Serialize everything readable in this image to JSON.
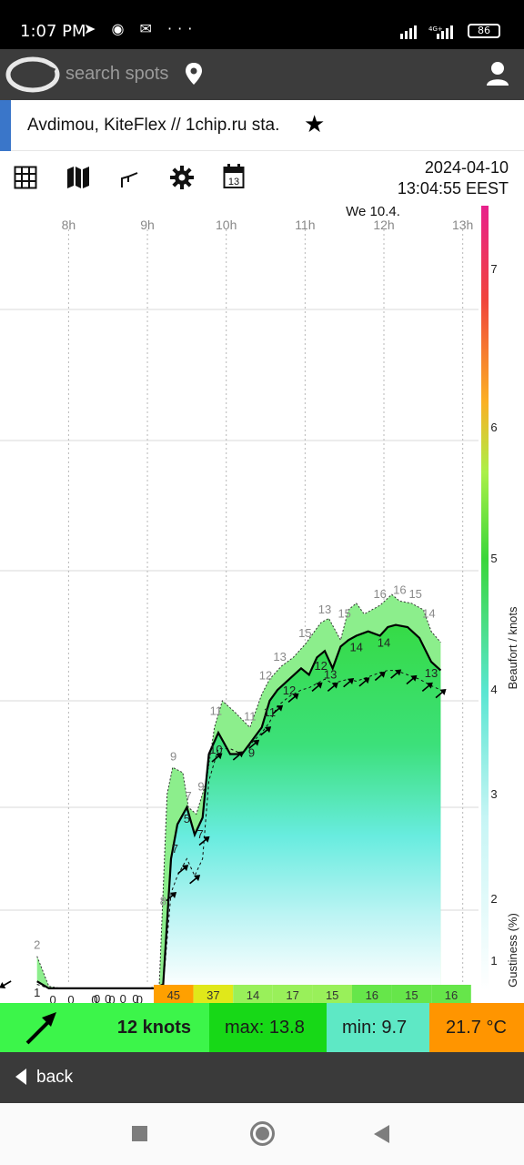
{
  "status": {
    "time": "1:07 PM",
    "notification_icons": "➤ ◉ ✉ ···",
    "network": "4G+",
    "battery": "86"
  },
  "header": {
    "search_placeholder": "search spots"
  },
  "spot": {
    "name": "Avdimou, KiteFlex // 1chip.ru sta.",
    "star": "★"
  },
  "toolbar": {
    "icons": [
      "table-icon",
      "map-icon",
      "graph-icon",
      "settings-icon",
      "calendar-icon"
    ],
    "calendar_day": "13",
    "date": "2024-04-10",
    "time": "13:04:55 EEST"
  },
  "chart_data": {
    "type": "area",
    "day_label": "We 10.4.",
    "hour_ticks": [
      "8h",
      "9h",
      "10h",
      "11h",
      "12h",
      "13h"
    ],
    "ylabel": "Beaufort / knots",
    "y2label": "Gustiness (%)",
    "beaufort_ticks": [
      "1",
      "2",
      "3",
      "4",
      "5",
      "6",
      "7"
    ],
    "series": [
      {
        "name": "gust",
        "x": [
          7.6,
          7.75,
          7.9,
          8.5,
          9.0,
          9.15,
          9.25,
          9.32,
          9.45,
          9.52,
          9.62,
          9.75,
          9.85,
          9.95,
          10.1,
          10.3,
          10.45,
          10.55,
          10.7,
          10.85,
          11.0,
          11.1,
          11.2,
          11.3,
          11.45,
          11.55,
          11.65,
          11.75,
          11.95,
          12.1,
          12.2,
          12.35,
          12.5,
          12.6,
          12.72
        ],
        "values": [
          2,
          0.3,
          0.1,
          0.1,
          0.1,
          0.3,
          7.5,
          8.5,
          8.3,
          7.0,
          6.8,
          8.0,
          10.0,
          11.0,
          10.6,
          10.0,
          11.3,
          12.0,
          12.6,
          13.0,
          13.6,
          14.1,
          14.6,
          14.8,
          13.8,
          15.2,
          15.5,
          15.0,
          15.4,
          15.9,
          15.6,
          15.5,
          15.2,
          14.2,
          13.7
        ]
      },
      {
        "name": "average",
        "x": [
          7.6,
          7.75,
          7.9,
          8.5,
          9.0,
          9.1,
          9.2,
          9.3,
          9.38,
          9.5,
          9.6,
          9.7,
          9.78,
          9.9,
          10.05,
          10.2,
          10.35,
          10.45,
          10.55,
          10.65,
          10.8,
          10.95,
          11.05,
          11.15,
          11.25,
          11.35,
          11.45,
          11.55,
          11.65,
          11.8,
          11.95,
          12.05,
          12.15,
          12.3,
          12.45,
          12.6,
          12.72
        ],
        "values": [
          0.8,
          0.1,
          0.1,
          0.1,
          0.1,
          0.1,
          0.5,
          5.5,
          6.5,
          7.0,
          6.2,
          6.7,
          9.0,
          9.8,
          9.0,
          9.0,
          9.6,
          10.0,
          11.0,
          11.5,
          12.0,
          12.5,
          12.2,
          13.0,
          13.3,
          12.5,
          13.5,
          13.8,
          14.0,
          14.2,
          14.0,
          14.4,
          14.5,
          14.4,
          13.9,
          12.8,
          12.4
        ]
      },
      {
        "name": "minimum",
        "x": [
          7.6,
          7.75,
          7.9,
          8.5,
          9.0,
          9.1,
          9.2,
          9.3,
          9.38,
          9.5,
          9.6,
          9.7,
          9.78,
          9.9,
          10.05,
          10.2,
          10.35,
          10.45,
          10.55,
          10.65,
          10.8,
          10.95,
          11.05,
          11.15,
          11.25,
          11.35,
          11.45,
          11.55,
          11.65,
          11.8,
          11.95,
          12.05,
          12.15,
          12.3,
          12.45,
          12.6,
          12.72
        ],
        "values": [
          0.5,
          0.1,
          0.1,
          0.1,
          0.1,
          0.1,
          0.3,
          4.5,
          5.0,
          5.5,
          5.0,
          5.5,
          8.0,
          9.2,
          9.2,
          9.0,
          9.5,
          9.8,
          10.2,
          10.8,
          11.2,
          11.5,
          11.6,
          11.8,
          12.0,
          11.8,
          11.9,
          12.0,
          11.9,
          12.1,
          12.3,
          12.4,
          12.4,
          12.2,
          12.0,
          11.7,
          11.5
        ]
      }
    ],
    "gust_labels": [
      {
        "x": 7.6,
        "text": "2"
      },
      {
        "x": 9.2,
        "text": "8"
      },
      {
        "x": 9.33,
        "text": "9"
      },
      {
        "x": 9.52,
        "text": "7"
      },
      {
        "x": 9.68,
        "text": "9"
      },
      {
        "x": 9.87,
        "text": "11"
      },
      {
        "x": 10.3,
        "text": "11"
      },
      {
        "x": 10.5,
        "text": "12"
      },
      {
        "x": 10.68,
        "text": "13"
      },
      {
        "x": 11.0,
        "text": "15"
      },
      {
        "x": 11.25,
        "text": "13"
      },
      {
        "x": 11.5,
        "text": "15"
      },
      {
        "x": 11.95,
        "text": "16"
      },
      {
        "x": 12.2,
        "text": "16"
      },
      {
        "x": 12.4,
        "text": "15"
      },
      {
        "x": 12.57,
        "text": "14"
      }
    ],
    "avg_labels": [
      {
        "x": 7.6,
        "text": "1"
      },
      {
        "x": 7.8,
        "text": "0"
      },
      {
        "x": 8.03,
        "text": "0"
      },
      {
        "x": 8.33,
        "text": "0"
      },
      {
        "x": 8.55,
        "text": "0"
      },
      {
        "x": 8.9,
        "text": "0"
      },
      {
        "x": 9.18,
        "text": "5"
      },
      {
        "x": 9.35,
        "text": "7"
      },
      {
        "x": 9.5,
        "text": "5"
      },
      {
        "x": 9.67,
        "text": "7"
      },
      {
        "x": 9.87,
        "text": "10"
      },
      {
        "x": 10.32,
        "text": "9"
      },
      {
        "x": 10.55,
        "text": "11"
      },
      {
        "x": 10.8,
        "text": "12"
      },
      {
        "x": 11.2,
        "text": "12"
      },
      {
        "x": 11.32,
        "text": "13"
      },
      {
        "x": 11.65,
        "text": "14"
      },
      {
        "x": 12.0,
        "text": "14"
      },
      {
        "x": 12.6,
        "text": "13"
      }
    ],
    "bottom_zero_labels": [
      "0",
      "0",
      "0",
      "0"
    ],
    "direction_strip": [
      {
        "label": "45",
        "color": "#ffa000"
      },
      {
        "label": "37",
        "color": "#e0e81a"
      },
      {
        "label": "14",
        "color": "#99f05a"
      },
      {
        "label": "17",
        "color": "#99f05a"
      },
      {
        "label": "15",
        "color": "#99f05a"
      },
      {
        "label": "16",
        "color": "#66e64a"
      },
      {
        "label": "15",
        "color": "#66e64a"
      },
      {
        "label": "16",
        "color": "#66e64a"
      }
    ],
    "grid": true
  },
  "summary": {
    "speed": "12 knots",
    "max": "max: 13.8",
    "min": "min: 9.7",
    "temp": "21.7 °C"
  },
  "backbar": {
    "label": "back"
  }
}
